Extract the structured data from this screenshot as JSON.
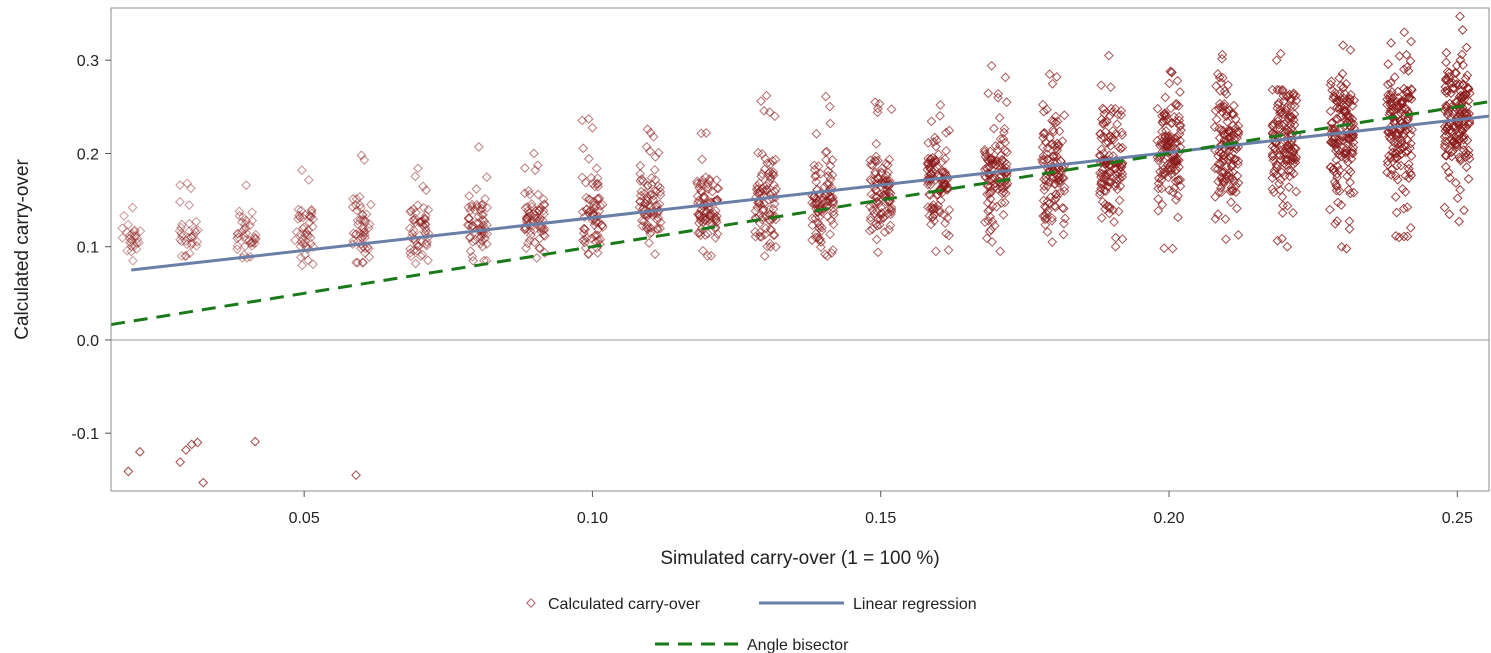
{
  "chart_data": {
    "type": "scatter",
    "xlabel": "Simulated carry-over (1 = 100 %)",
    "ylabel": "Calculated carry-over",
    "xlim": [
      0.0165,
      0.2555
    ],
    "ylim": [
      -0.162,
      0.356
    ],
    "x_ticks": [
      0.05,
      0.1,
      0.15,
      0.2,
      0.25
    ],
    "x_tick_labels": [
      "0.05",
      "0.10",
      "0.15",
      "0.20",
      "0.25"
    ],
    "y_ticks": [
      -0.1,
      0.0,
      0.1,
      0.2,
      0.3
    ],
    "y_tick_labels": [
      "-0.1",
      "0.0",
      "0.1",
      "0.2",
      "0.3"
    ],
    "reference_line_y": 0,
    "legend_position": "bottom",
    "legend": [
      {
        "name": "Calculated carry-over",
        "marker": "diamond-open",
        "color": "#8b1a1a"
      },
      {
        "name": "Linear regression",
        "marker": "line-solid",
        "color": "#6a7fa8"
      },
      {
        "name": "Angle bisector",
        "marker": "line-dashed",
        "color": "#1a7a1a"
      }
    ],
    "series": [
      {
        "name": "Calculated carry-over",
        "kind": "scatter",
        "color": "#8b1a1a",
        "note_points": "point clusters summarized per simulated level: min, typical center, max",
        "clusters": [
          {
            "x": 0.02,
            "y_min": 0.085,
            "y_center": 0.108,
            "y_max": 0.142
          },
          {
            "x": 0.03,
            "y_min": 0.09,
            "y_center": 0.11,
            "y_max": 0.168
          },
          {
            "x": 0.04,
            "y_min": 0.088,
            "y_center": 0.112,
            "y_max": 0.166
          },
          {
            "x": 0.05,
            "y_min": 0.08,
            "y_center": 0.115,
            "y_max": 0.182
          },
          {
            "x": 0.06,
            "y_min": 0.083,
            "y_center": 0.118,
            "y_max": 0.198
          },
          {
            "x": 0.07,
            "y_min": 0.082,
            "y_center": 0.12,
            "y_max": 0.184
          },
          {
            "x": 0.08,
            "y_min": 0.085,
            "y_center": 0.122,
            "y_max": 0.207
          },
          {
            "x": 0.09,
            "y_min": 0.088,
            "y_center": 0.127,
            "y_max": 0.2
          },
          {
            "x": 0.1,
            "y_min": 0.092,
            "y_center": 0.132,
            "y_max": 0.237
          },
          {
            "x": 0.11,
            "y_min": 0.092,
            "y_center": 0.137,
            "y_max": 0.226
          },
          {
            "x": 0.12,
            "y_min": 0.09,
            "y_center": 0.142,
            "y_max": 0.222
          },
          {
            "x": 0.13,
            "y_min": 0.09,
            "y_center": 0.147,
            "y_max": 0.262
          },
          {
            "x": 0.14,
            "y_min": 0.09,
            "y_center": 0.152,
            "y_max": 0.261
          },
          {
            "x": 0.15,
            "y_min": 0.094,
            "y_center": 0.16,
            "y_max": 0.255
          },
          {
            "x": 0.16,
            "y_min": 0.095,
            "y_center": 0.167,
            "y_max": 0.252
          },
          {
            "x": 0.17,
            "y_min": 0.095,
            "y_center": 0.175,
            "y_max": 0.294
          },
          {
            "x": 0.18,
            "y_min": 0.105,
            "y_center": 0.184,
            "y_max": 0.285
          },
          {
            "x": 0.19,
            "y_min": 0.1,
            "y_center": 0.192,
            "y_max": 0.305
          },
          {
            "x": 0.2,
            "y_min": 0.098,
            "y_center": 0.2,
            "y_max": 0.288
          },
          {
            "x": 0.21,
            "y_min": 0.108,
            "y_center": 0.208,
            "y_max": 0.306
          },
          {
            "x": 0.22,
            "y_min": 0.1,
            "y_center": 0.216,
            "y_max": 0.307
          },
          {
            "x": 0.23,
            "y_min": 0.098,
            "y_center": 0.225,
            "y_max": 0.316
          },
          {
            "x": 0.24,
            "y_min": 0.11,
            "y_center": 0.232,
            "y_max": 0.33
          },
          {
            "x": 0.25,
            "y_min": 0.127,
            "y_center": 0.242,
            "y_max": 0.347
          }
        ],
        "outliers": [
          {
            "x": 0.0195,
            "y": -0.141
          },
          {
            "x": 0.0215,
            "y": -0.12
          },
          {
            "x": 0.0285,
            "y": -0.131
          },
          {
            "x": 0.0295,
            "y": -0.118
          },
          {
            "x": 0.0305,
            "y": -0.112
          },
          {
            "x": 0.0315,
            "y": -0.11
          },
          {
            "x": 0.0325,
            "y": -0.153
          },
          {
            "x": 0.0415,
            "y": -0.109
          },
          {
            "x": 0.059,
            "y": -0.145
          }
        ]
      },
      {
        "name": "Linear regression",
        "kind": "line",
        "color": "#6a7fa8",
        "x": [
          0.02,
          0.2555
        ],
        "y": [
          0.075,
          0.24
        ]
      },
      {
        "name": "Angle bisector",
        "kind": "line-dashed",
        "color": "#1a7a1a",
        "x": [
          0.0165,
          0.2555
        ],
        "y": [
          0.0165,
          0.2555
        ]
      }
    ]
  }
}
